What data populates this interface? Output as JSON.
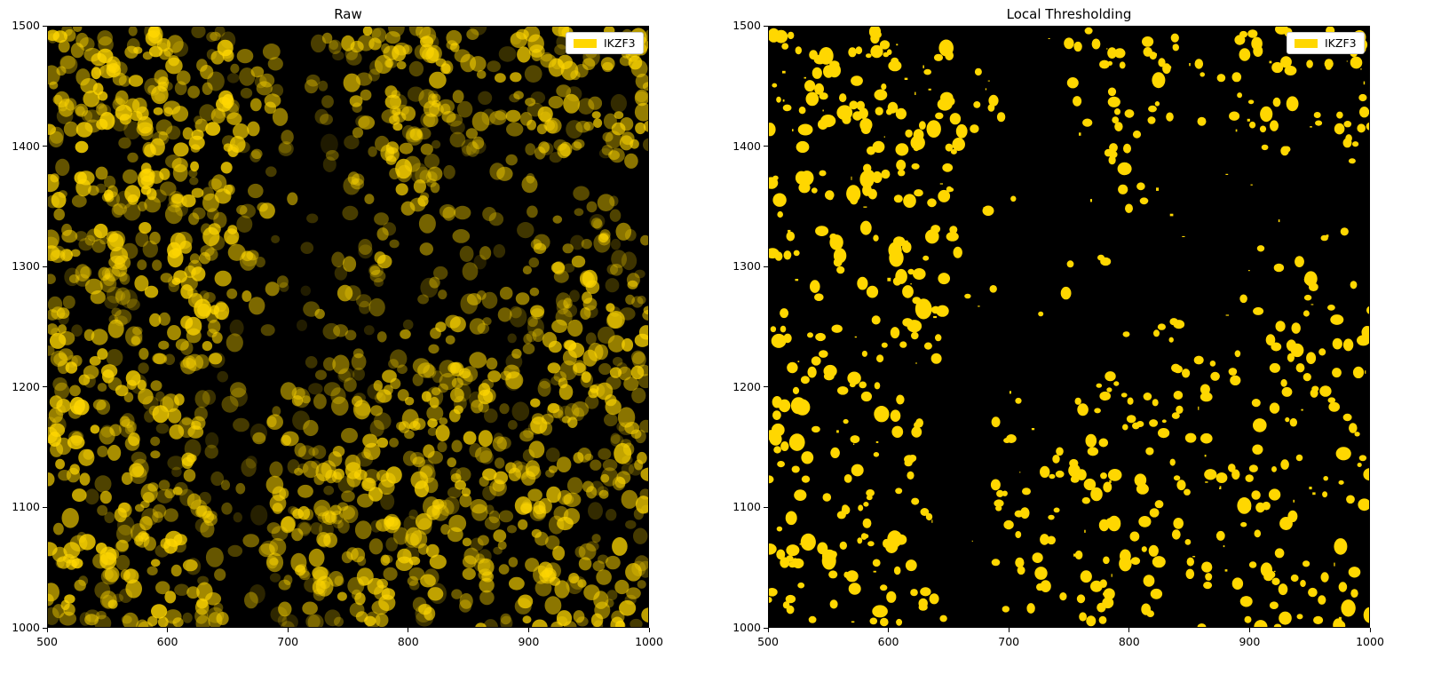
{
  "figure": {
    "panels": [
      {
        "title": "Raw",
        "legend": "IKZF3",
        "mode": "raw"
      },
      {
        "title": "Local Thresholding",
        "legend": "IKZF3",
        "mode": "threshold"
      }
    ]
  },
  "colors": {
    "signal": "#ffd700",
    "background": "#000000"
  },
  "chart_data": [
    {
      "type": "heatmap",
      "title": "Raw",
      "legend": [
        "IKZF3"
      ],
      "legend_position": "top-right",
      "xlim": [
        500,
        1000
      ],
      "ylim": [
        1000,
        1500
      ],
      "xticks": [
        500,
        600,
        700,
        800,
        900,
        1000
      ],
      "yticks": [
        1000,
        1100,
        1200,
        1300,
        1400,
        1500
      ],
      "colormap": "black-to-gold"
    },
    {
      "type": "heatmap",
      "title": "Local Thresholding",
      "legend": [
        "IKZF3"
      ],
      "legend_position": "top-right",
      "xlim": [
        500,
        1000
      ],
      "ylim": [
        1000,
        1500
      ],
      "xticks": [
        500,
        600,
        700,
        800,
        900,
        1000
      ],
      "yticks": [
        1000,
        1100,
        1200,
        1300,
        1400,
        1500
      ],
      "colormap": "binary-gold"
    }
  ]
}
